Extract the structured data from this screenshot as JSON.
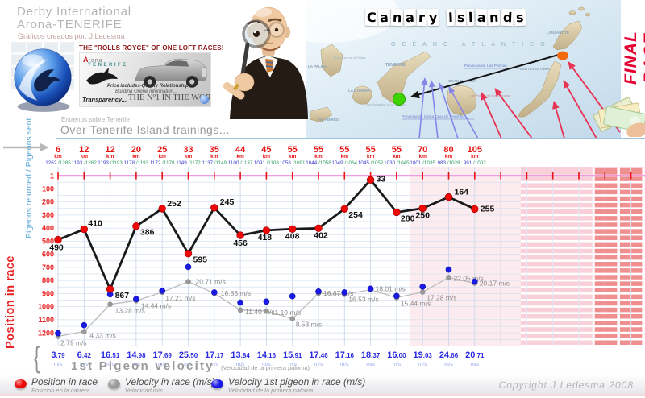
{
  "header": {
    "title_line1": "Derby International",
    "title_line2": "Arona-TENERIFE",
    "credit": "Gráficos creados por: J.Ledesma",
    "final_race": "FINAL RACE",
    "banner": {
      "title": "THE \"ROLLS ROYCE\" OF ONE LOFT RACES!",
      "logo_a": "A",
      "logo_rest": "rona",
      "logo_line2": "TENERIFE",
      "text1": "Price includes-Quality Relationship",
      "text2": "Building Online Information...",
      "text3": "Transparency...",
      "text4": "THE Nº1 IN THE WORLD"
    }
  },
  "map": {
    "title": "Canary Islands",
    "ocean": "OCÉANO ATLÁNTICO",
    "labels": {
      "la_palma": "LA PALMA",
      "santa_cruz_palma": "Santa Cruz de la Palma",
      "tenerife": "TENERIFE",
      "la_gomera": "LA GOMERA",
      "san_sebastian": "San Sebastián de la Gomera",
      "el_hierro": "EL HIERRO",
      "gran_canaria": "GRAN CANARIA",
      "las_palmas": "Las Palmas de Gran Canaria",
      "fuerteventura": "FUERTEVENTURA",
      "lanzarote": "LANZAROTE",
      "provincia_lp": "Provincia de Las Palmas",
      "provincia_sc": "Provincia de Santa Cruz de Tenerife"
    }
  },
  "trainings": {
    "label_es": "Entrenos sobre Tenerife",
    "label_en": "Over Tenerife Island trainings..."
  },
  "axes": {
    "left_secondary": "Pigeons returned / Pigeons sent",
    "left_primary": "Position in race"
  },
  "chart_data": {
    "type": "line",
    "title": "Over Tenerife Island trainings...",
    "x_unit": "km",
    "x_categories_km": [
      6,
      12,
      12,
      20,
      25,
      33,
      35,
      44,
      45,
      55,
      55,
      55,
      55,
      55,
      70,
      80,
      105
    ],
    "pigeons_returned": [
      1262,
      1193,
      1193,
      1178,
      1172,
      1149,
      1137,
      1100,
      1091,
      1058,
      1044,
      1049,
      1045,
      1030,
      1001,
      983,
      991
    ],
    "pigeons_sent": [
      1285,
      1262,
      1193,
      1193,
      1178,
      1172,
      1149,
      1137,
      1108,
      1091,
      1058,
      1064,
      1052,
      1045,
      1035,
      1028,
      1002
    ],
    "y_axis": {
      "label": "Position in race",
      "ticks": [
        1,
        100,
        200,
        300,
        400,
        500,
        600,
        700,
        800,
        900,
        1000,
        1100,
        1200
      ],
      "inverted": true
    },
    "grid": true,
    "legend_position": "bottom",
    "series": [
      {
        "name": "Position in race",
        "color": "#ee0808",
        "values": [
          490,
          410,
          867,
          386,
          252,
          595,
          245,
          456,
          418,
          408,
          402,
          254,
          33,
          280,
          250,
          164,
          255
        ]
      },
      {
        "name": "Velocity in race (m/s)",
        "color": "#9a9a9a",
        "unit": "m/s",
        "values": [
          "2.79",
          "4.33",
          "13.28",
          "14.44",
          "17.21",
          "20.71",
          "16.83",
          "11.40",
          "11.10",
          "8.53",
          "16.87",
          "16.53",
          "18.01",
          "15.44",
          "17.28",
          "22.05",
          "20.17"
        ]
      },
      {
        "name": "Velocity 1st pigeon in race (m/s)",
        "color": "#1a1ae6",
        "unit": "m/s",
        "values": [
          "3.79",
          "6.42",
          "16.51",
          "14.98",
          "17.69",
          "25.50",
          "17.17",
          "13.84",
          "14.16",
          "15.91",
          "17.46",
          "17.16",
          "18.37",
          "16.00",
          "19.03",
          "24.66",
          "20.71"
        ]
      }
    ]
  },
  "bottom": {
    "brace": "{",
    "velocity_title": "1st Pigeon velocity",
    "velocity_subtitle": "(Velocidad de la primera paloma)",
    "unit": "m/s"
  },
  "legend": {
    "items": [
      {
        "label": "Position in race",
        "sublabel": "Posicion en la carrera",
        "color": "#ee0808"
      },
      {
        "label": "Velocity in race (m/s)",
        "sublabel": "Velocidad m/s",
        "color": "#9a9a9a"
      },
      {
        "label": "Velocity 1st pigeon in race (m/s)",
        "sublabel": "Velocidad de la primera paloma",
        "color": "#1a1ae6"
      }
    ],
    "copyright": "Copyright J.Ledesma 2008"
  }
}
